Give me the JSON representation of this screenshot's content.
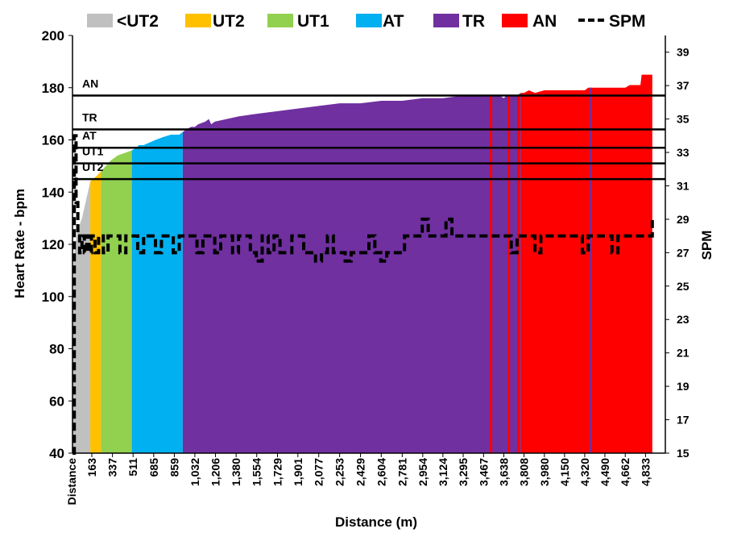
{
  "chart_data": {
    "type": "area",
    "xlabel": "Distance (m)",
    "ylabel": "Heart Rate - bpm",
    "y2label": "SPM",
    "ylim": [
      40,
      200
    ],
    "yticks": [
      "40",
      "60",
      "80",
      "100",
      "120",
      "140",
      "160",
      "180",
      "200"
    ],
    "y2lim": [
      15,
      40
    ],
    "y2ticks": [
      "15",
      "17",
      "19",
      "21",
      "23",
      "25",
      "27",
      "29",
      "31",
      "33",
      "35",
      "37",
      "39"
    ],
    "x_first_label": "Distance",
    "xlim": [
      0,
      5000
    ],
    "xticks": [
      {
        "value": 163,
        "label": "163"
      },
      {
        "value": 337,
        "label": "337"
      },
      {
        "value": 511,
        "label": "511"
      },
      {
        "value": 685,
        "label": "685"
      },
      {
        "value": 859,
        "label": "859"
      },
      {
        "value": 1032,
        "label": "1,032"
      },
      {
        "value": 1206,
        "label": "1,206"
      },
      {
        "value": 1380,
        "label": "1,380"
      },
      {
        "value": 1554,
        "label": "1,554"
      },
      {
        "value": 1729,
        "label": "1,729"
      },
      {
        "value": 1901,
        "label": "1,901"
      },
      {
        "value": 2077,
        "label": "2,077"
      },
      {
        "value": 2253,
        "label": "2,253"
      },
      {
        "value": 2429,
        "label": "2,429"
      },
      {
        "value": 2604,
        "label": "2,604"
      },
      {
        "value": 2781,
        "label": "2,781"
      },
      {
        "value": 2954,
        "label": "2,954"
      },
      {
        "value": 3124,
        "label": "3,124"
      },
      {
        "value": 3295,
        "label": "3,295"
      },
      {
        "value": 3467,
        "label": "3,467"
      },
      {
        "value": 3638,
        "label": "3,638"
      },
      {
        "value": 3808,
        "label": "3,808"
      },
      {
        "value": 3980,
        "label": "3,980"
      },
      {
        "value": 4150,
        "label": "4,150"
      },
      {
        "value": 4320,
        "label": "4,320"
      },
      {
        "value": 4490,
        "label": "4,490"
      },
      {
        "value": 4662,
        "label": "4,662"
      },
      {
        "value": 4833,
        "label": "4,833"
      }
    ],
    "legend_position": "top",
    "zones": [
      {
        "name": "<UT2",
        "color": "#C0C0C0"
      },
      {
        "name": "UT2",
        "color": "#FFC000"
      },
      {
        "name": "UT1",
        "color": "#92D050"
      },
      {
        "name": "AT",
        "color": "#00B0F0"
      },
      {
        "name": "TR",
        "color": "#7030A0"
      },
      {
        "name": "AN",
        "color": "#FF0000"
      }
    ],
    "spm_series": {
      "name": "SPM",
      "color": "#000000",
      "style": "dashed"
    },
    "thresholds": [
      {
        "label": "AN",
        "value": 177
      },
      {
        "label": "TR",
        "value": 164
      },
      {
        "label": "AT",
        "value": 157
      },
      {
        "label": "UT1",
        "value": 151
      },
      {
        "label": "UT2",
        "value": 145
      }
    ],
    "segments": [
      {
        "zone": "<UT2",
        "x": [
          0,
          10,
          40,
          80,
          120,
          150
        ],
        "hr": [
          40,
          115,
          125,
          130,
          138,
          144
        ]
      },
      {
        "zone": "UT2",
        "x": [
          150,
          170,
          200,
          240
        ],
        "hr": [
          144,
          145,
          146,
          148
        ]
      },
      {
        "zone": "UT1",
        "x": [
          240,
          280,
          320,
          380,
          440,
          500
        ],
        "hr": [
          148,
          150,
          152,
          154,
          155,
          156
        ]
      },
      {
        "zone": "AT",
        "x": [
          500,
          540,
          560,
          600,
          650,
          700,
          760,
          830,
          900,
          930
        ],
        "hr": [
          156,
          157,
          158,
          158,
          159,
          160,
          161,
          162,
          162,
          163
        ]
      },
      {
        "zone": "TR",
        "x": [
          930,
          960,
          1000,
          1032,
          1060,
          1120,
          1150,
          1170,
          1200,
          1300,
          1400,
          1554,
          1729,
          1901,
          2077,
          2253,
          2429,
          2604,
          2781,
          2954,
          3124,
          3295,
          3467,
          3600,
          3638,
          3660,
          3700,
          3750,
          3780
        ],
        "hr": [
          163,
          164,
          165,
          165,
          166,
          167,
          168,
          166,
          167,
          168,
          169,
          170,
          171,
          172,
          173,
          174,
          174,
          175,
          175,
          176,
          176,
          177,
          177,
          177,
          176,
          177,
          177,
          177,
          178
        ]
      },
      {
        "zone": "AN",
        "x": [
          3780,
          3808,
          3850,
          3900,
          3980,
          4100,
          4150,
          4200,
          4320,
          4350,
          4400,
          4450,
          4490,
          4560,
          4662,
          4700,
          4750,
          4790,
          4800,
          4830,
          4860,
          4880,
          4890,
          4890
        ],
        "hr": [
          178,
          178,
          179,
          178,
          179,
          179,
          179,
          179,
          179,
          180,
          180,
          180,
          180,
          180,
          180,
          181,
          181,
          181,
          185,
          185,
          185,
          185,
          185,
          177
        ]
      }
    ],
    "zone_markers": [
      {
        "x": 3530,
        "zone": "AN"
      },
      {
        "x": 3680,
        "zone": "AN"
      },
      {
        "x": 3760,
        "zone": "AN"
      },
      {
        "x": 4370,
        "zone": "TR"
      }
    ],
    "spm": {
      "x": [
        0,
        15,
        30,
        45,
        60,
        80,
        100,
        120,
        140,
        160,
        190,
        220,
        260,
        300,
        350,
        400,
        450,
        500,
        550,
        600,
        650,
        700,
        750,
        800,
        850,
        900,
        950,
        1000,
        1050,
        1100,
        1150,
        1200,
        1250,
        1300,
        1350,
        1400,
        1450,
        1500,
        1550,
        1600,
        1650,
        1700,
        1750,
        1800,
        1850,
        1900,
        1950,
        2000,
        2050,
        2100,
        2150,
        2200,
        2250,
        2300,
        2350,
        2400,
        2450,
        2500,
        2550,
        2600,
        2650,
        2700,
        2750,
        2800,
        2850,
        2900,
        2950,
        3000,
        3050,
        3100,
        3150,
        3200,
        3250,
        3300,
        3350,
        3400,
        3450,
        3500,
        3550,
        3600,
        3650,
        3700,
        3750,
        3800,
        3850,
        3900,
        3950,
        4000,
        4050,
        4100,
        4150,
        4200,
        4250,
        4300,
        4350,
        4400,
        4450,
        4500,
        4550,
        4600,
        4650,
        4700,
        4750,
        4800,
        4850,
        4890
      ],
      "values": [
        15,
        34,
        30,
        28,
        27,
        28,
        27,
        28,
        27,
        28,
        27,
        28,
        27,
        28,
        28,
        27,
        28,
        28,
        27,
        28,
        28,
        27,
        28,
        28,
        27,
        28,
        28,
        28,
        27,
        28,
        28,
        27,
        28,
        28,
        27,
        28,
        28,
        27,
        26.5,
        28,
        27,
        28,
        27,
        27,
        28,
        28,
        27,
        27,
        26.5,
        27,
        28,
        27,
        27,
        26.5,
        27,
        27,
        27,
        28,
        27,
        26.5,
        27,
        27,
        27,
        28,
        28,
        28,
        29,
        28,
        28,
        28,
        29,
        28,
        28,
        28,
        28,
        28,
        28,
        28,
        28,
        28,
        28,
        27,
        28,
        28,
        28,
        27,
        28,
        28,
        28,
        28,
        28,
        28,
        28,
        27,
        28,
        28,
        28,
        28,
        27,
        28,
        28,
        28,
        28,
        28,
        28,
        29
      ]
    }
  }
}
